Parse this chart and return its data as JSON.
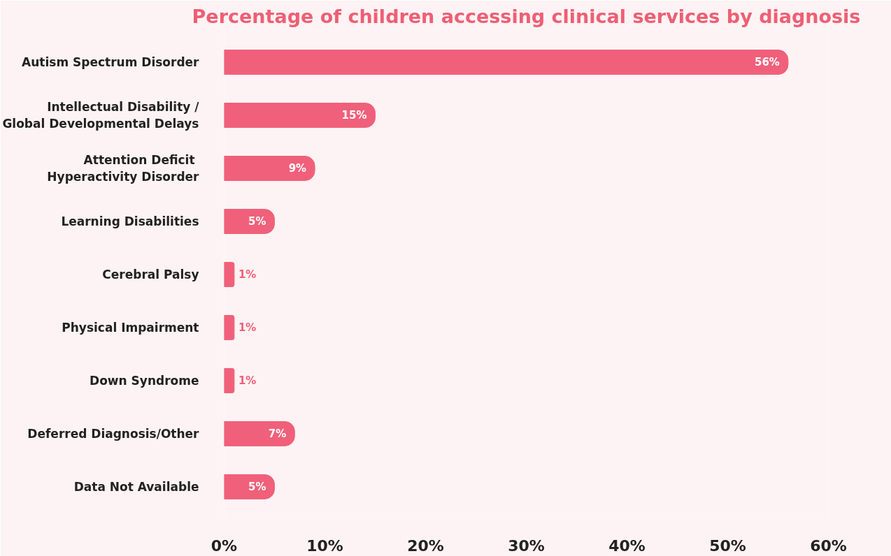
{
  "chart_data": {
    "type": "bar",
    "orientation": "horizontal",
    "title": "Percentage of children accessing clinical services by diagnosis",
    "categories": [
      "Autism Spectrum Disorder",
      "Intellectual Disability /\nGlobal Developmental Delays",
      "Attention Deficit \nHyperactivity Disorder",
      "Learning Disabilities",
      "Cerebral Palsy",
      "Physical Impairment",
      "Down Syndrome",
      "Deferred Diagnosis/Other",
      "Data Not Available"
    ],
    "values": [
      56,
      15,
      9,
      5,
      1,
      1,
      1,
      7,
      5
    ],
    "value_labels": [
      "56%",
      "15%",
      "9%",
      "5%",
      "1%",
      "1%",
      "1%",
      "7%",
      "5%"
    ],
    "color": "#f0607a",
    "xlim": [
      0,
      60
    ],
    "xticks": [
      {
        "value": 0,
        "label": "0%"
      },
      {
        "value": 10,
        "label": "10%"
      },
      {
        "value": 20,
        "label": "20%"
      },
      {
        "value": 30,
        "label": "30%"
      },
      {
        "value": 40,
        "label": "40%"
      },
      {
        "value": 50,
        "label": "50%"
      },
      {
        "value": 60,
        "label": "60%"
      }
    ],
    "grid": false
  }
}
